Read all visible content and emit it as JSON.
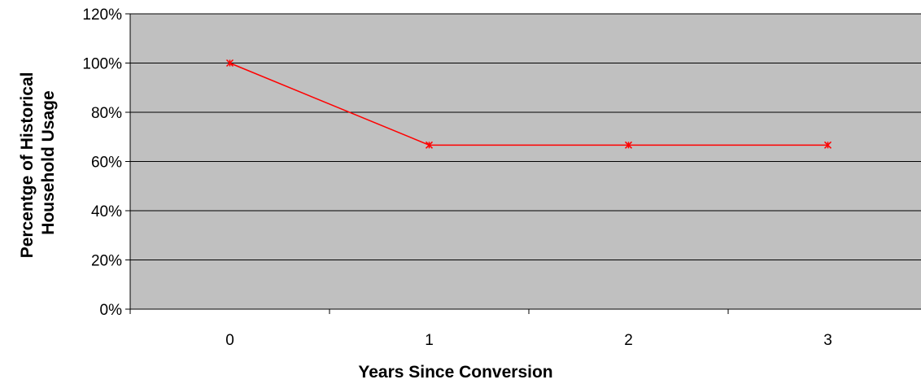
{
  "colors": {
    "plot_background": "#c0c0c0",
    "series_line": "#ff0000",
    "gridline": "#000000",
    "axis": "#000000"
  },
  "chart_data": {
    "type": "line",
    "title": "",
    "xlabel": "Years Since Conversion",
    "ylabel": [
      "Percentge of Historical",
      "Household Usage"
    ],
    "categories": [
      "0",
      "1",
      "2",
      "3"
    ],
    "series": [
      {
        "values": [
          1.0,
          0.6667,
          0.6667,
          0.6667
        ],
        "marker": "asterisk"
      }
    ],
    "ylim": [
      0,
      1.2
    ],
    "yticks": [
      0,
      0.2,
      0.4,
      0.6,
      0.8,
      1.0,
      1.2
    ],
    "ytick_labels": [
      "0%",
      "20%",
      "40%",
      "60%",
      "80%",
      "100%",
      "120%"
    ],
    "grid": true,
    "legend": "none"
  }
}
